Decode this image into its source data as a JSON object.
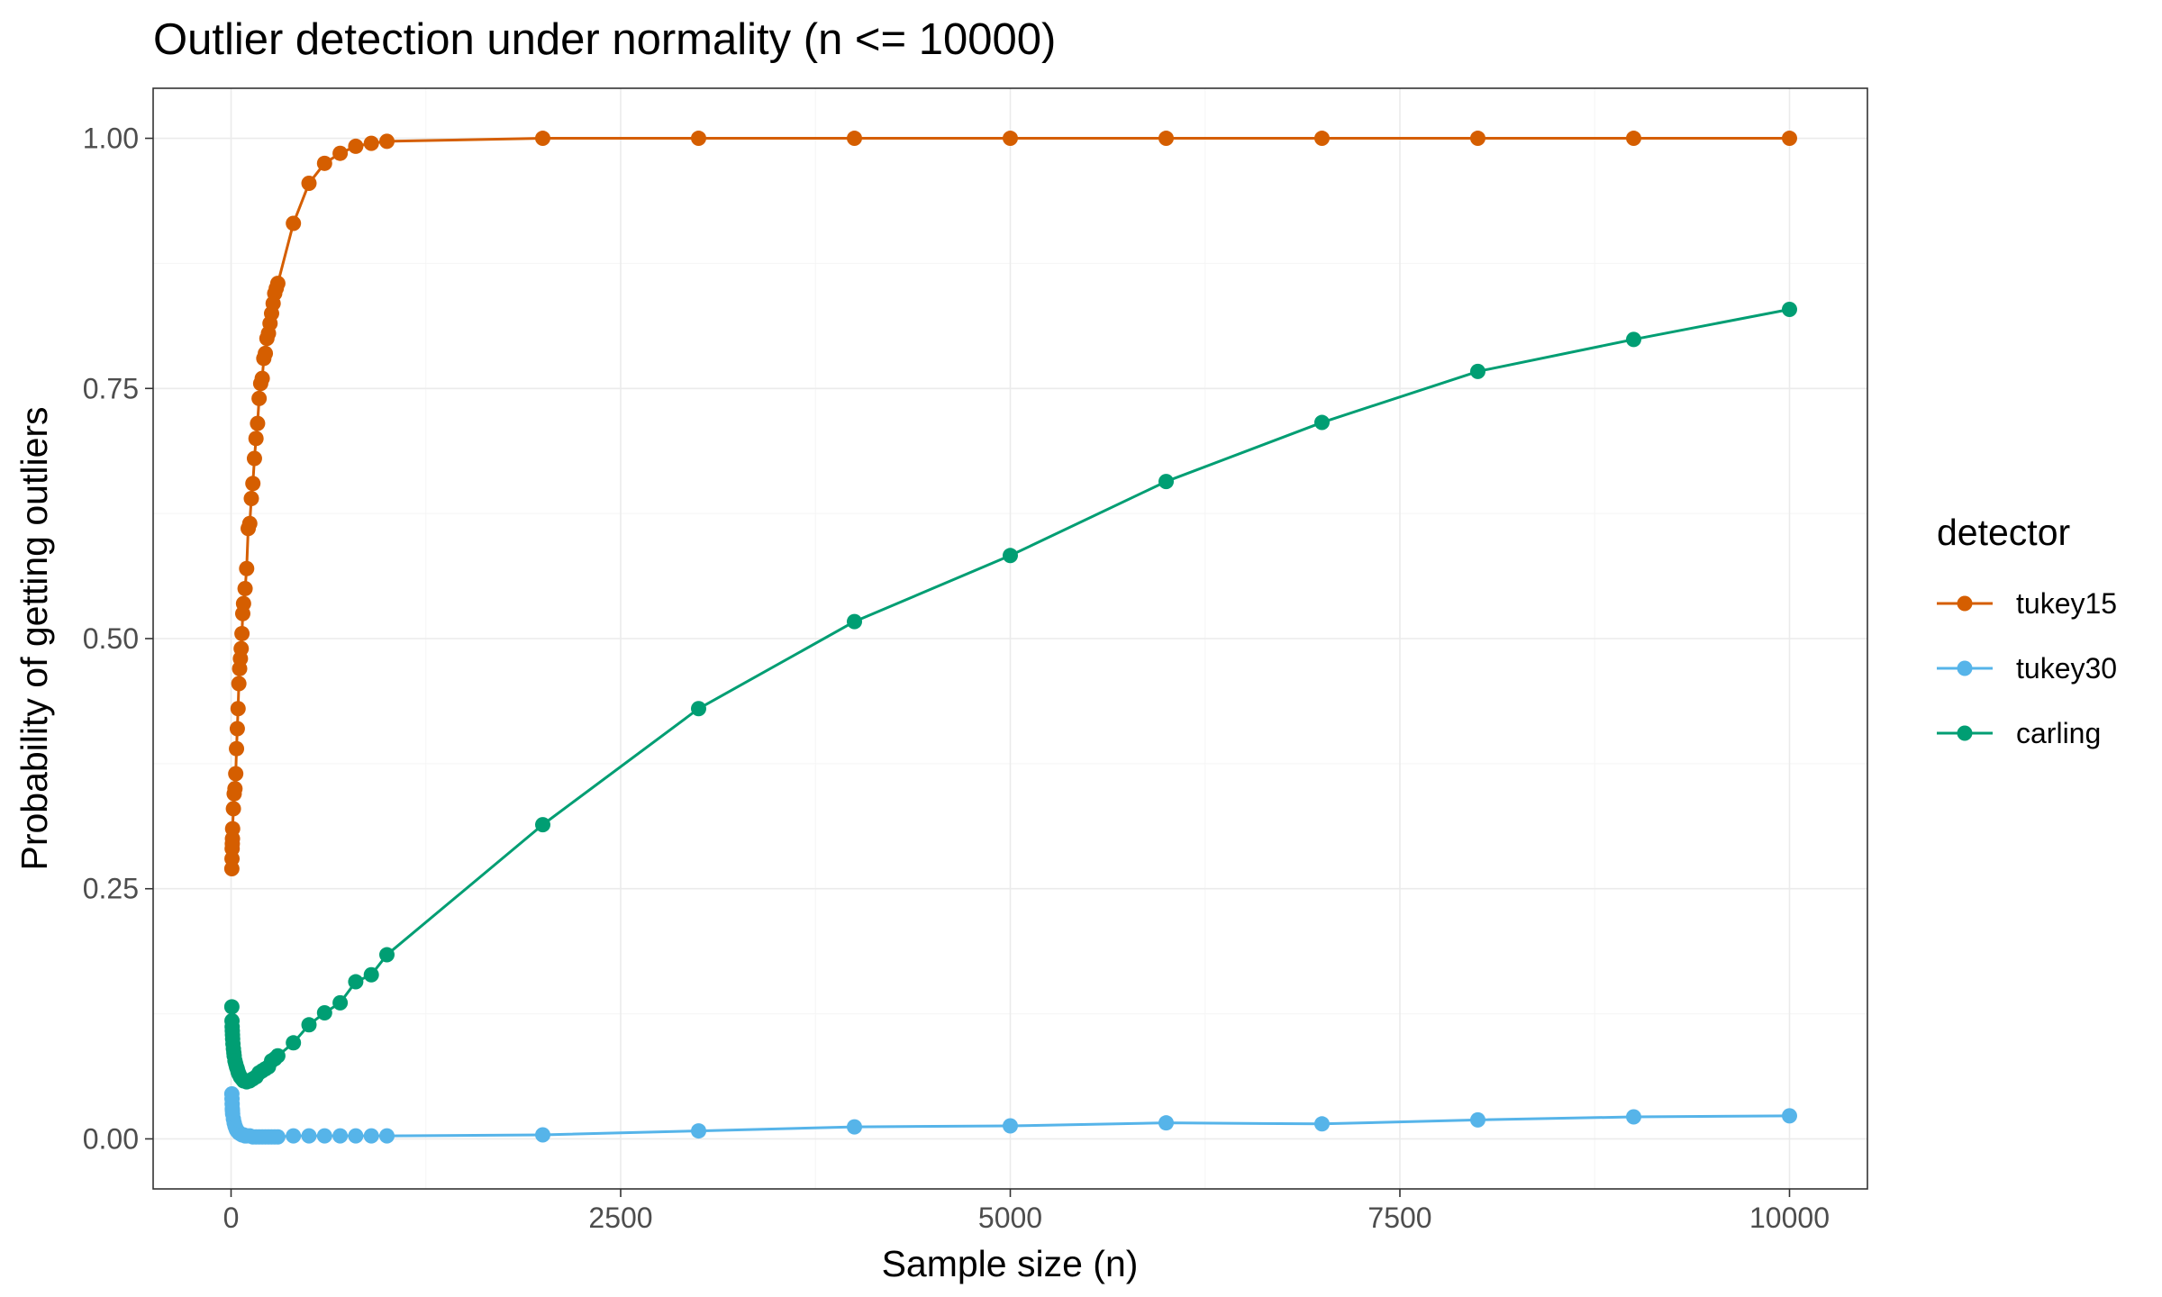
{
  "chart_data": {
    "type": "line",
    "title": "Outlier detection under normality (n <= 10000)",
    "xlabel": "Sample size (n)",
    "ylabel": "Probability of getting outliers",
    "xlim": [
      -500,
      10500
    ],
    "ylim": [
      -0.05,
      1.05
    ],
    "x_ticks": [
      0,
      2500,
      5000,
      7500,
      10000
    ],
    "x_tick_labels": [
      "0",
      "2500",
      "5000",
      "7500",
      "10000"
    ],
    "y_ticks": [
      0,
      0.25,
      0.5,
      0.75,
      1.0
    ],
    "y_tick_labels": [
      "0.00",
      "0.25",
      "0.50",
      "0.75",
      "1.00"
    ],
    "grid": true,
    "legend": {
      "title": "detector",
      "position": "right"
    },
    "series": [
      {
        "name": "tukey15",
        "color": "#D55E00",
        "x": [
          5,
          6,
          7,
          8,
          9,
          10,
          15,
          20,
          25,
          30,
          35,
          40,
          45,
          50,
          55,
          60,
          65,
          70,
          75,
          80,
          90,
          100,
          110,
          120,
          130,
          140,
          150,
          160,
          170,
          180,
          190,
          200,
          210,
          220,
          230,
          240,
          250,
          260,
          270,
          280,
          290,
          300,
          400,
          500,
          600,
          700,
          800,
          900,
          1000,
          2000,
          3000,
          4000,
          5000,
          6000,
          7000,
          8000,
          9000,
          10000
        ],
        "y": [
          0.27,
          0.28,
          0.29,
          0.295,
          0.3,
          0.31,
          0.33,
          0.345,
          0.35,
          0.365,
          0.39,
          0.41,
          0.43,
          0.455,
          0.47,
          0.48,
          0.49,
          0.505,
          0.525,
          0.535,
          0.55,
          0.57,
          0.61,
          0.615,
          0.64,
          0.655,
          0.68,
          0.7,
          0.715,
          0.74,
          0.755,
          0.76,
          0.78,
          0.785,
          0.8,
          0.805,
          0.815,
          0.825,
          0.835,
          0.845,
          0.85,
          0.855,
          0.915,
          0.955,
          0.975,
          0.985,
          0.992,
          0.995,
          0.997,
          1.0,
          1.0,
          1.0,
          1.0,
          1.0,
          1.0,
          1.0,
          1.0,
          1.0
        ]
      },
      {
        "name": "tukey30",
        "color": "#56B4E9",
        "x": [
          5,
          6,
          7,
          8,
          9,
          10,
          15,
          20,
          25,
          30,
          35,
          40,
          45,
          50,
          60,
          70,
          80,
          90,
          100,
          120,
          140,
          160,
          180,
          200,
          220,
          240,
          260,
          280,
          300,
          400,
          500,
          600,
          700,
          800,
          900,
          1000,
          2000,
          3000,
          4000,
          5000,
          6000,
          7000,
          8000,
          9000,
          10000
        ],
        "y": [
          0.045,
          0.04,
          0.035,
          0.03,
          0.028,
          0.025,
          0.02,
          0.016,
          0.013,
          0.011,
          0.009,
          0.008,
          0.007,
          0.006,
          0.005,
          0.004,
          0.004,
          0.003,
          0.003,
          0.003,
          0.002,
          0.002,
          0.002,
          0.002,
          0.002,
          0.002,
          0.002,
          0.002,
          0.002,
          0.003,
          0.003,
          0.003,
          0.003,
          0.003,
          0.003,
          0.003,
          0.004,
          0.008,
          0.012,
          0.013,
          0.016,
          0.015,
          0.019,
          0.022,
          0.023
        ]
      },
      {
        "name": "carling",
        "color": "#009E73",
        "x": [
          5,
          6,
          7,
          8,
          9,
          10,
          12,
          15,
          18,
          20,
          25,
          30,
          35,
          40,
          45,
          50,
          60,
          70,
          80,
          90,
          100,
          120,
          140,
          160,
          180,
          200,
          220,
          240,
          260,
          280,
          300,
          400,
          500,
          600,
          700,
          800,
          900,
          1000,
          2000,
          3000,
          4000,
          5000,
          6000,
          7000,
          8000,
          9000,
          10000
        ],
        "y": [
          0.132,
          0.118,
          0.112,
          0.108,
          0.104,
          0.1,
          0.095,
          0.09,
          0.086,
          0.083,
          0.078,
          0.075,
          0.072,
          0.07,
          0.067,
          0.065,
          0.062,
          0.06,
          0.058,
          0.058,
          0.057,
          0.058,
          0.06,
          0.062,
          0.066,
          0.068,
          0.07,
          0.072,
          0.078,
          0.08,
          0.083,
          0.096,
          0.114,
          0.126,
          0.136,
          0.157,
          0.164,
          0.184,
          0.314,
          0.43,
          0.517,
          0.583,
          0.657,
          0.716,
          0.767,
          0.799,
          0.829
        ]
      }
    ]
  }
}
